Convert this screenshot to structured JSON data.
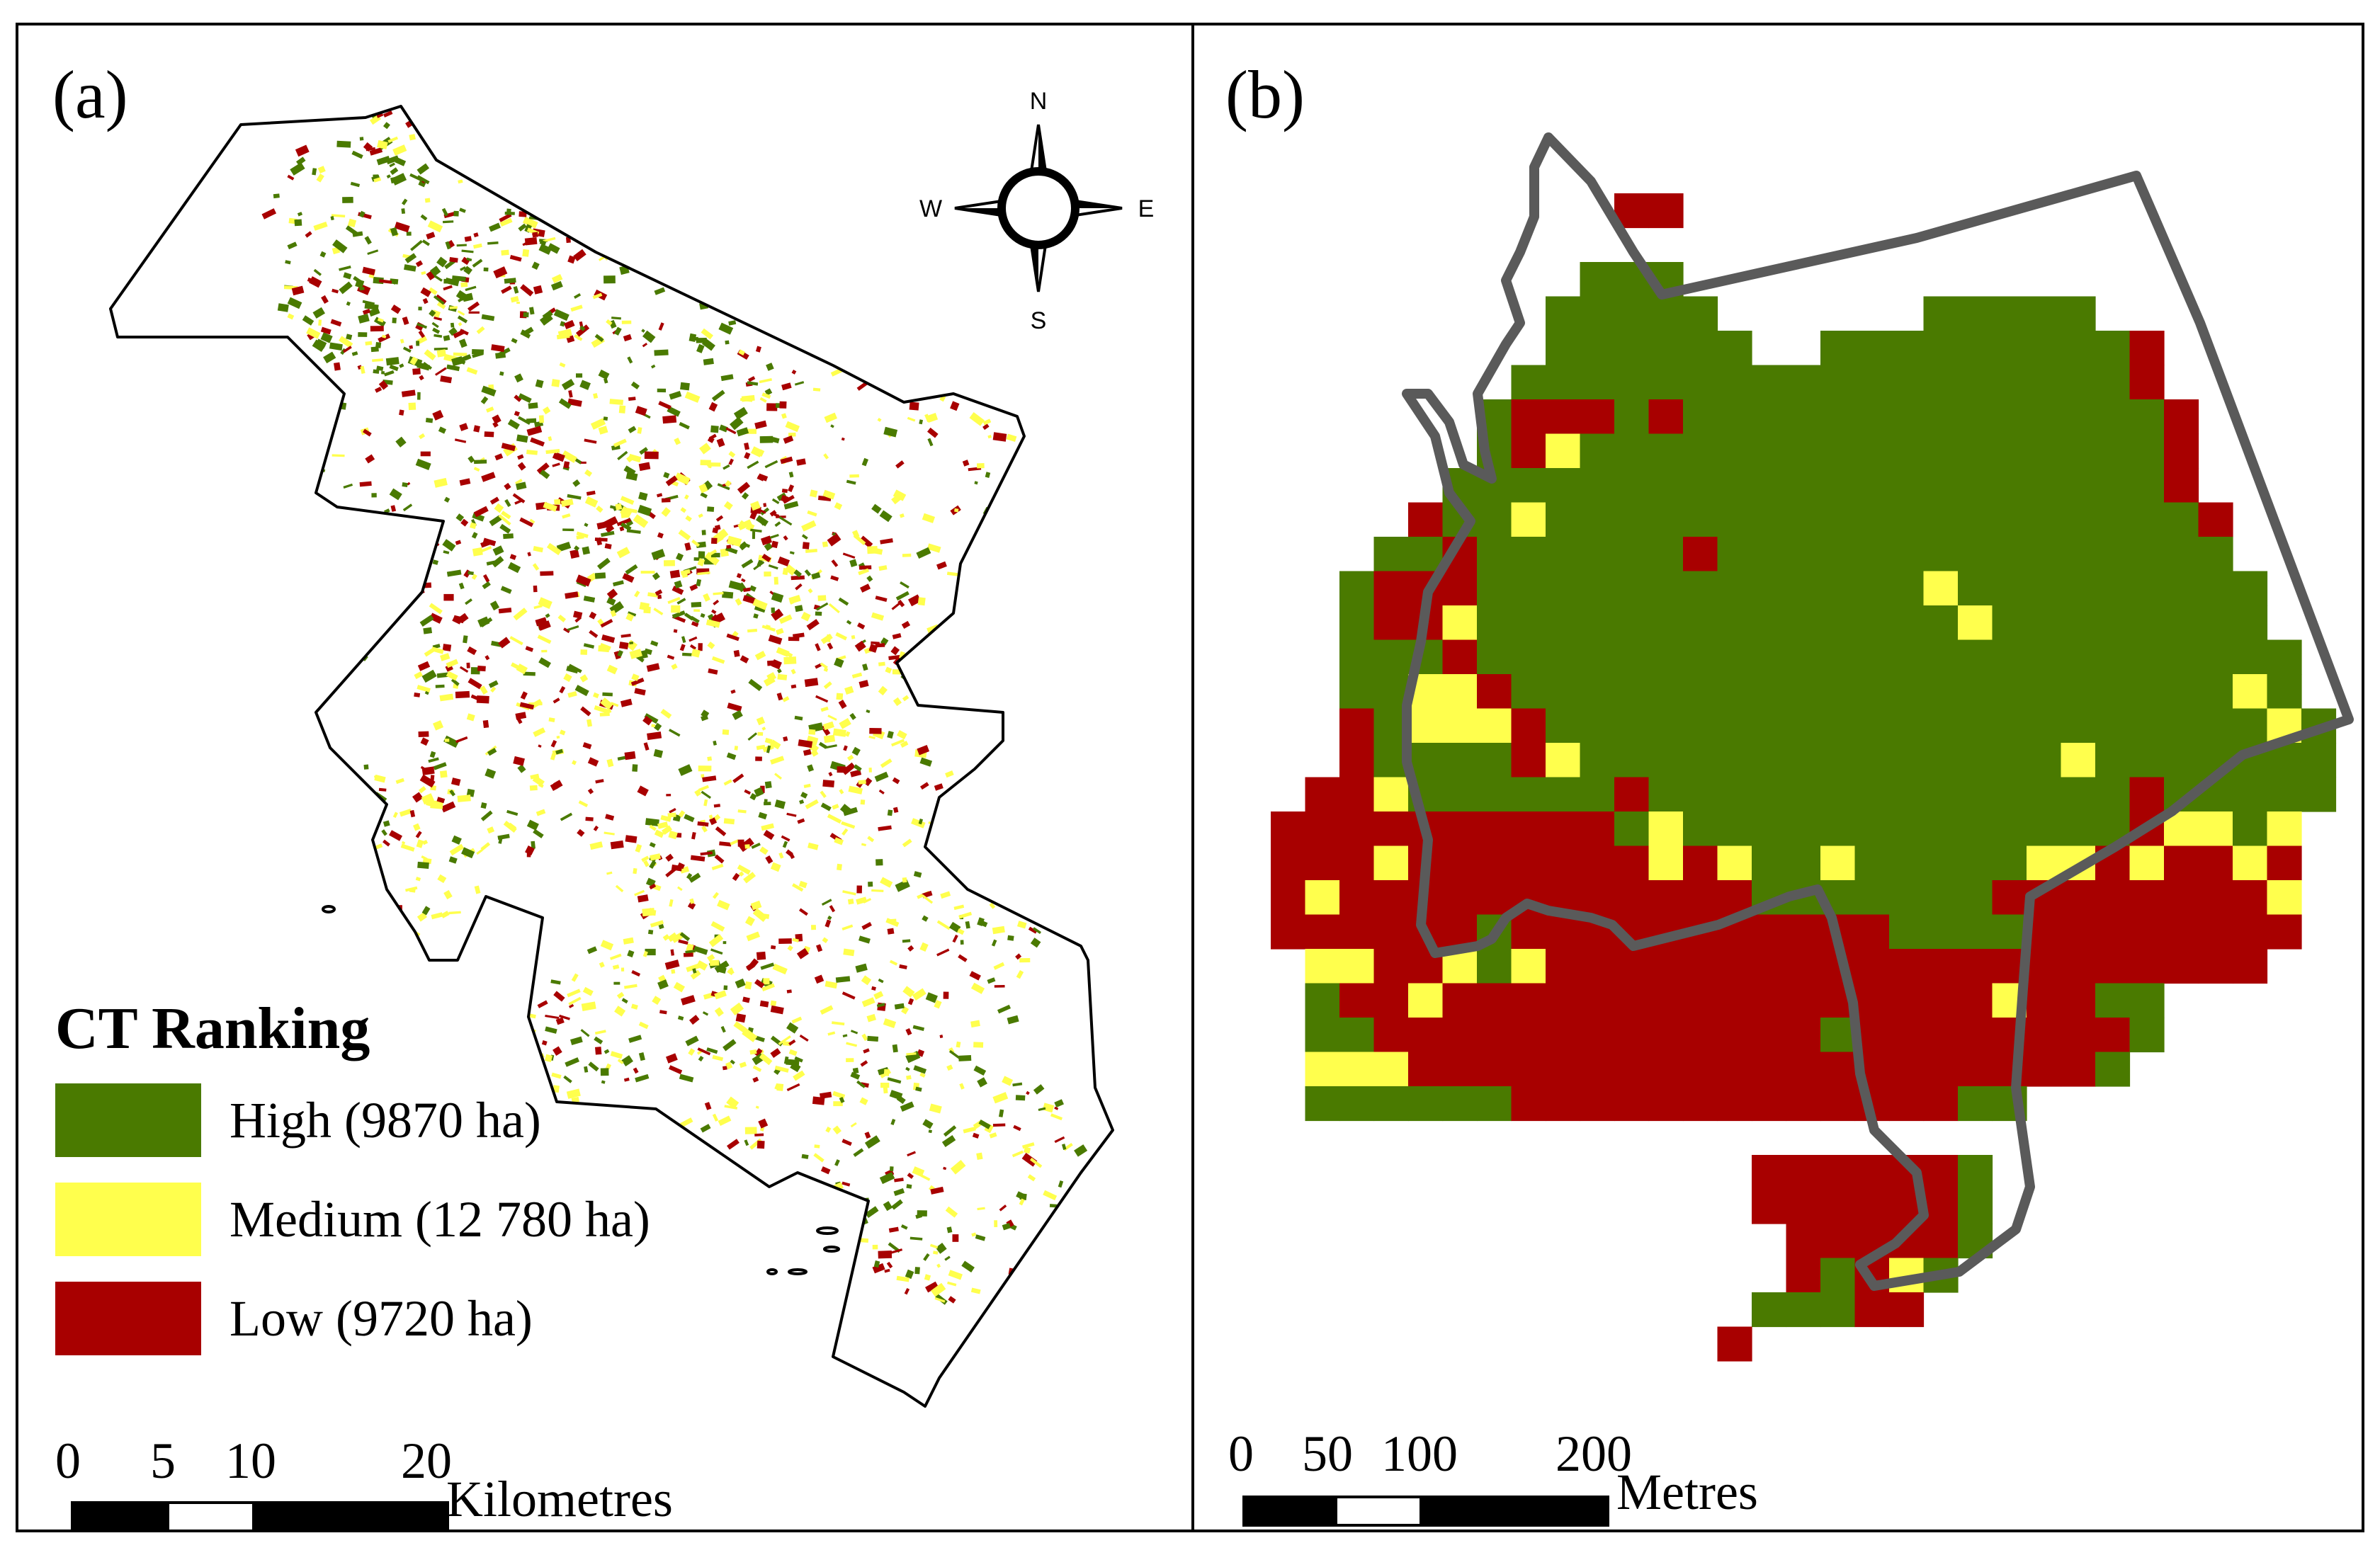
{
  "panel_a": {
    "label": "(a)",
    "compass": {
      "n": "N",
      "s": "S",
      "e": "E",
      "w": "W"
    },
    "legend": {
      "title": "CT Ranking",
      "items": [
        {
          "label": "High (9870 ha)",
          "color": "#4a7a00"
        },
        {
          "label": "Medium (12 780 ha)",
          "color": "#ffff4d"
        },
        {
          "label": "Low (9720 ha)",
          "color": "#a80000"
        }
      ]
    },
    "scale": {
      "ticks": [
        "0",
        "5",
        "10",
        "20"
      ],
      "unit": "Kilometres"
    }
  },
  "panel_b": {
    "label": "(b)",
    "scale": {
      "ticks": [
        "0",
        "50",
        "100",
        "200"
      ],
      "unit": "Metres"
    }
  },
  "colors": {
    "high": "#4a7a00",
    "medium": "#ffff4d",
    "low": "#a80000",
    "boundary_b": "#5a5a5a"
  }
}
